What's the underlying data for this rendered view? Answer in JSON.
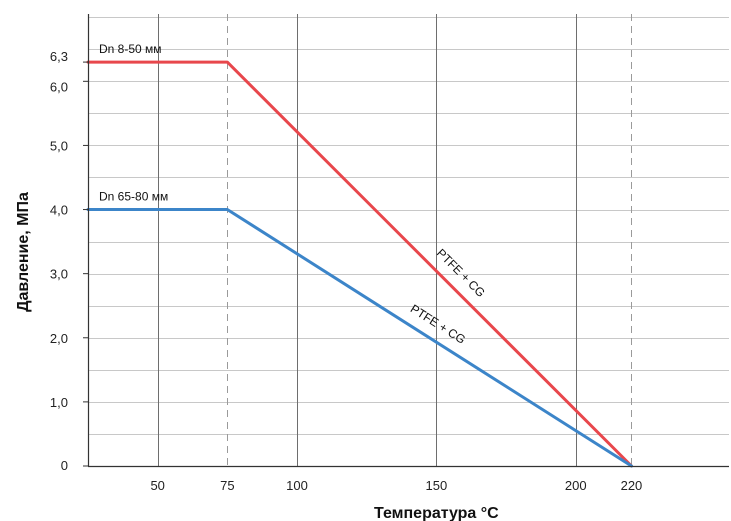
{
  "chart_data": {
    "type": "line",
    "xlabel": "Температура °С",
    "ylabel": "Давление, МПа",
    "xlim": [
      25,
      255
    ],
    "ylim": [
      0,
      7.05
    ],
    "grid": true,
    "x_ticks": [
      {
        "value": 50,
        "label": "50"
      },
      {
        "value": 75,
        "label": "75"
      },
      {
        "value": 100,
        "label": "100"
      },
      {
        "value": 150,
        "label": "150"
      },
      {
        "value": 200,
        "label": "200"
      },
      {
        "value": 220,
        "label": "220"
      }
    ],
    "y_ticks": [
      {
        "value": 0,
        "label": "0"
      },
      {
        "value": 1.0,
        "label": "1,0"
      },
      {
        "value": 2.0,
        "label": "2,0"
      },
      {
        "value": 3.0,
        "label": "3,0"
      },
      {
        "value": 4.0,
        "label": "4,0"
      },
      {
        "value": 5.0,
        "label": "5,0"
      },
      {
        "value": 6.0,
        "label": "6,0"
      },
      {
        "value": 6.3,
        "label": "6,3"
      }
    ],
    "y_gridlines": [
      0.5,
      1.0,
      1.5,
      2.0,
      2.5,
      3.0,
      3.5,
      4.0,
      4.5,
      5.0,
      5.5,
      6.0,
      6.5,
      7.0
    ],
    "x_gridlines": [
      50,
      100,
      150,
      200
    ],
    "x_dashed_lines": [
      75,
      220
    ],
    "series": [
      {
        "name": "Dn 8-50 мм",
        "color": "#e8474c",
        "material": "PTFE + CG",
        "x": [
          25,
          75,
          220
        ],
        "y": [
          6.3,
          6.3,
          0
        ]
      },
      {
        "name": "Dn 65-80 мм",
        "color": "#3c85c9",
        "material": "PTFE + CG",
        "x": [
          25,
          75,
          220
        ],
        "y": [
          4.0,
          4.0,
          0
        ]
      }
    ]
  }
}
